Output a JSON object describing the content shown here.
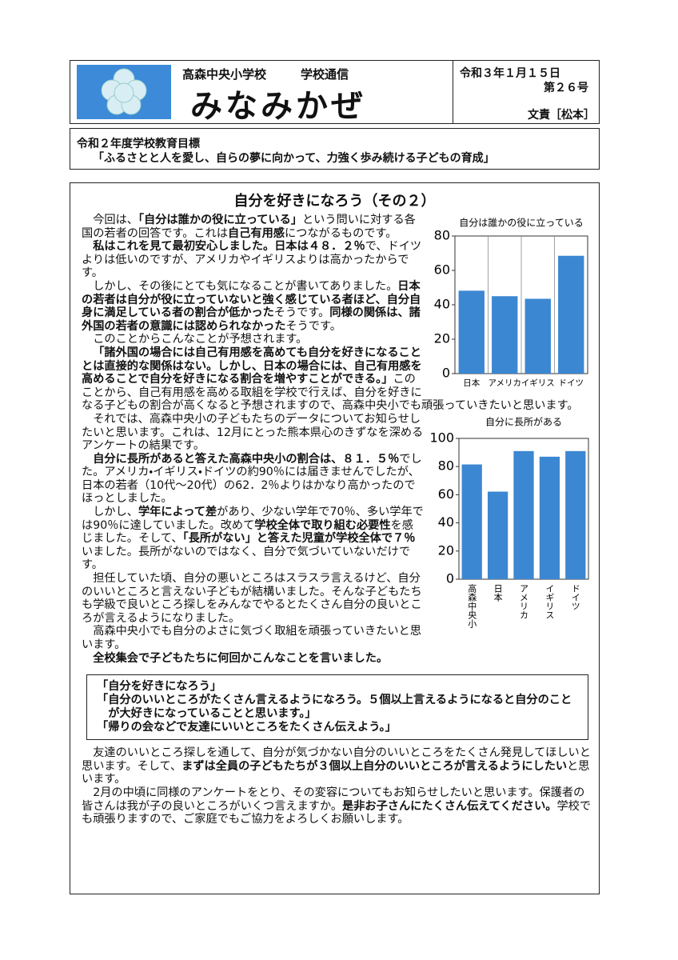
{
  "header": {
    "school": "高森中央小学校",
    "series": "学校通信",
    "title": "みなみかぜ",
    "date": "令和３年１月１５日",
    "issue": "第２６号",
    "author": "文責［松本］"
  },
  "goal": {
    "label": "令和２年度学校教育目標",
    "text": "「ふるさとと人を愛し、自らの夢に向かって、力強く歩み続ける子どもの育成」"
  },
  "article": {
    "heading": "自分を好きになろう（その２）",
    "paragraphs": [
      [
        {
          "text": "今回は、"
        },
        {
          "text": "「自分は誰かの役に立っている」",
          "bold": true
        },
        {
          "text": "という問いに対する各国の若者の回答です。これは"
        },
        {
          "text": "自己有用感",
          "bold": true
        },
        {
          "text": "につながるものです。"
        }
      ],
      [
        {
          "text": "私はこれを見て最初安心しました。日本は４８．２％",
          "bold": true
        },
        {
          "text": "で、ドイツよりは低いのですが、アメリカやイギリスよりは高かったからです。"
        }
      ],
      [
        {
          "text": "しかし、その後にとても気になることが書いてありました。"
        },
        {
          "text": "日本の若者は自分が役に立っていないと強く感じている者ほど、自分自身に満足している者の割合が低かった",
          "bold": true
        },
        {
          "text": "そうです。"
        },
        {
          "text": "同様の関係は、諸外国の若者の意識には認められなかった",
          "bold": true
        },
        {
          "text": "そうです。"
        }
      ],
      [
        {
          "text": "このことからこんなことが予想されます。"
        }
      ],
      [
        {
          "text": "「諸外国の場合には自己有用感を高めても自分を好きになることとは直接的な関係はない。しかし、日本の場合には、自己有用感を高めることで自分を好きになる割合を増やすことができる。」",
          "bold": true
        },
        {
          "text": "このことから、自己有用感を高める取組を学校で行えば、自分を好きになる子どもの割合が高くなると予想されますので、高森中央小でも頑張っていきたいと思います。"
        }
      ],
      [
        {
          "text": "それでは、高森中央小の子どもたちのデータについてお知らせしたいと思います。これは、12月にとった熊本県心のきずなを深めるアンケートの結果です。"
        }
      ],
      [
        {
          "text": "自分に長所があると答えた高森中央小の割合は、８１．５％",
          "bold": true
        },
        {
          "text": "でした。アメリカ・イギリス・ドイツの約90％には届きませんでしたが、日本の若者（10代～20代）の62．2％よりはかなり高かったのでほっとしました。"
        }
      ],
      [
        {
          "text": "しかし、"
        },
        {
          "text": "学年によって差",
          "bold": true
        },
        {
          "text": "があり、少ない学年で70％、多い学年では90％に達していました。改めて"
        },
        {
          "text": "学校全体で取り組む必要性",
          "bold": true
        },
        {
          "text": "を感じました。そして、"
        },
        {
          "text": "「長所がない」と答えた児童が学校全体で７％",
          "bold": true
        },
        {
          "text": "いました。長所がないのではなく、自分で気づいていないだけです。"
        }
      ],
      [
        {
          "text": "担任していた頃、自分の悪いところはスラスラ言えるけど、自分のいいところと言えない子どもが結構いました。そんな子どもたちも学級で良いところ探しをみんなでやるとたくさん自分の良いところが言えるようになりました。"
        }
      ],
      [
        {
          "text": "高森中央小でも自分のよさに気づく取組を頑張っていきたいと思います。"
        }
      ],
      [
        {
          "text": "全校集会で子どもたちに何回かこんなことを言いました。",
          "bold": true
        }
      ]
    ],
    "quote": [
      "「自分を好きになろう」",
      "「自分のいいところがたくさん言えるようになろう。５個以上言えるようになると自分のことが大好きになっていることと思います。」",
      "「帰りの会などで友達にいいところをたくさん伝えよう。」"
    ],
    "closing": [
      [
        {
          "text": "友達のいいところ探しを通して、自分が気づかない自分のいいところをたくさん発見してほしいと思います。そして、"
        },
        {
          "text": "まずは全員の子どもたちが３個以上自分のいいところが言えるようにしたい",
          "bold": true
        },
        {
          "text": "と思います。"
        }
      ],
      [
        {
          "text": "2月の中頃に同様のアンケートをとり、その変容についてもお知らせしたいと思います。保護者の皆さんは我が子の良いところがいくつ言えますか。"
        },
        {
          "text": "是非お子さんにたくさん伝えてください。",
          "bold": true
        },
        {
          "text": "学校でも頑張りますので、ご家庭でもご協力をよろしくお願いします。"
        }
      ]
    ]
  },
  "chart_data": [
    {
      "type": "bar",
      "title": "自分は誰かの役に立っている",
      "categories": [
        "日本",
        "アメリカ",
        "イギリス",
        "ドイツ"
      ],
      "values": [
        48.2,
        45,
        43.5,
        68.5
      ],
      "color": "#3c87d2",
      "ylim": [
        0,
        80
      ],
      "yticks": [
        0,
        20,
        40,
        60,
        80
      ],
      "grid": true
    },
    {
      "type": "bar",
      "title": "自分に長所がある",
      "categories": [
        "高森中央小",
        "日本",
        "アメリカ",
        "イギリス",
        "ドイツ"
      ],
      "values": [
        81.5,
        62.2,
        91,
        87,
        91
      ],
      "color": "#3c87d2",
      "ylim": [
        0,
        100
      ],
      "yticks": [
        0,
        20,
        40,
        60,
        80,
        100
      ],
      "grid": false,
      "vertical_labels": true
    }
  ]
}
